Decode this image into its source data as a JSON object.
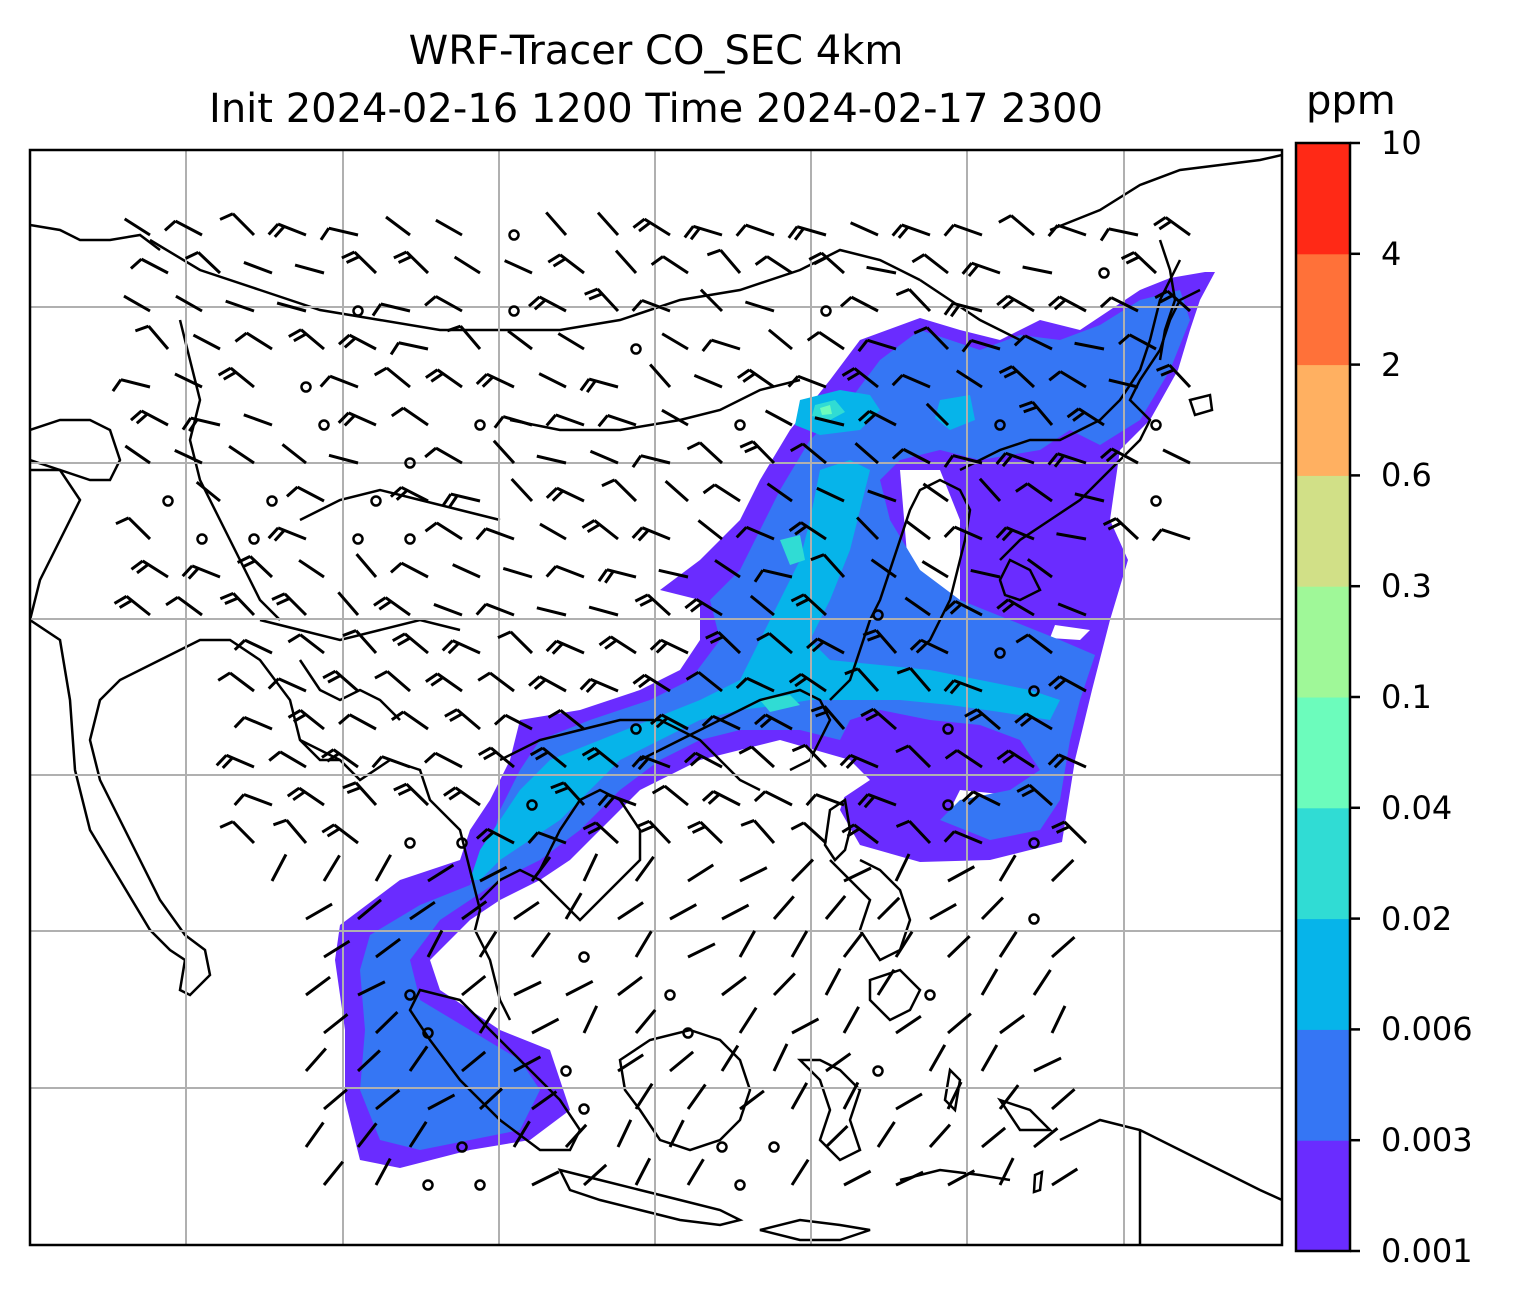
{
  "title": {
    "line1": "WRF-Tracer CO_SEC 4km",
    "line2": "Init 2024-02-16 1200 Time 2024-02-17 2300"
  },
  "colorbar": {
    "unit": "ppm",
    "levels": [
      "0.001",
      "0.003",
      "0.006",
      "0.02",
      "0.04",
      "0.1",
      "0.3",
      "0.6",
      "2",
      "4",
      "10"
    ],
    "colors": [
      "#6a2cff",
      "#3576f4",
      "#06b4ea",
      "#30dcd4",
      "#6cfcbc",
      "#9ff898",
      "#d1e087",
      "#ffb061",
      "#ff7139",
      "#ff2916"
    ]
  },
  "map": {
    "field": "CO_SEC tracer concentration",
    "gridlines": true,
    "wind_barbs": true,
    "coastlines": true
  }
}
